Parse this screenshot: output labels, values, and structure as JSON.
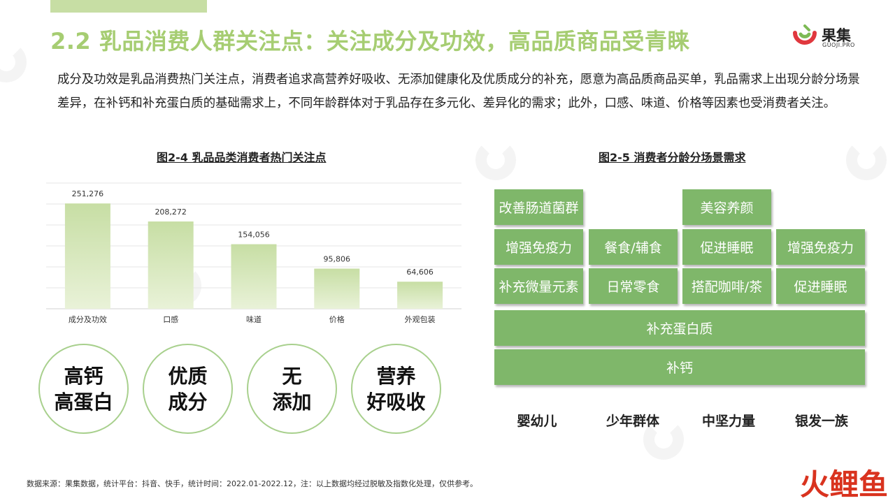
{
  "header": {
    "title": "2.2 乳品消费人群关注点：关注成分及功效，高品质商品受青睐",
    "logo_name": "果集",
    "logo_sub": "GUOJI.PRO"
  },
  "intro": "成分及功效是乳品消费热门关注点，消费者追求高营养好吸收、无添加健康化及优质成分的补充，愿意为高品质商品买单，乳品需求上出现分龄分场景差异，在补钙和补充蛋白质的基础需求上，不同年龄群体对于乳品存在多元化、差异化的需求；此外，口感、味道、价格等因素也受消费者关注。",
  "figure_left_title": "图2-4 乳品品类消费者热门关注点",
  "figure_right_title": "图2-5 消费者分龄分场景需求",
  "chart_data": {
    "type": "bar",
    "categories": [
      "成分及功效",
      "口感",
      "味道",
      "价格",
      "外观包装"
    ],
    "values": [
      251276,
      208272,
      154056,
      95806,
      64606
    ],
    "value_labels": [
      "251,276",
      "208,272",
      "154,056",
      "95,806",
      "64,606"
    ],
    "ylim": [
      0,
      300000
    ],
    "grid": true,
    "bar_color_top": "#c7dea4",
    "bar_color_bottom": "#e9f2d8"
  },
  "highlights": [
    {
      "line1": "高钙",
      "line2": "高蛋白"
    },
    {
      "line1": "优质",
      "line2": "成分"
    },
    {
      "line1": "无",
      "line2": "添加"
    },
    {
      "line1": "营养",
      "line2": "好吸收"
    }
  ],
  "needs": {
    "infant": [
      "改善肠道菌群",
      "增强免疫力",
      "补充微量元素"
    ],
    "youth": [
      "餐食/辅食",
      "日常零食"
    ],
    "core": [
      "美容养颜",
      "促进睡眠",
      "搭配咖啡/茶"
    ],
    "senior": [
      "增强免疫力",
      "促进睡眠"
    ],
    "shared_1": "补充蛋白质",
    "shared_2": "补钙"
  },
  "groups": [
    "婴幼儿",
    "少年群体",
    "中坚力量",
    "银发一族"
  ],
  "footer": "数据来源：果集数据，统计平台：抖音、快手，统计时间：2022.01-2022.12，注：以上数据均经过脱敏及指数化处理，仅供参考。",
  "corner_brand": "火鲤鱼",
  "colors": {
    "accent": "#a6cd72",
    "box": "#7fb76a",
    "circle_border": "#a8d08d",
    "logo_red": "#e0383e",
    "logo_green": "#7dba55"
  }
}
